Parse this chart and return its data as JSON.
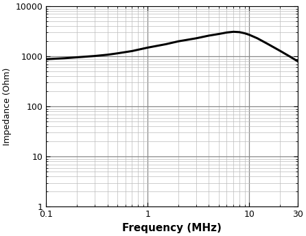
{
  "xlabel": "Frequency (MHz)",
  "ylabel": "Impedance (Ohm)",
  "xmin": 0.1,
  "xmax": 30,
  "ymin": 1,
  "ymax": 10000,
  "curve_color": "#000000",
  "curve_linewidth": 2.2,
  "grid_major_color": "#888888",
  "grid_minor_color": "#bbbbbb",
  "grid_major_lw": 0.9,
  "grid_minor_lw": 0.5,
  "background_color": "#ffffff",
  "freq_points": [
    0.1,
    0.15,
    0.2,
    0.3,
    0.4,
    0.5,
    0.7,
    1.0,
    1.5,
    2.0,
    3.0,
    4.0,
    5.0,
    6.0,
    7.0,
    8.0,
    9.0,
    10.0,
    12.0,
    15.0,
    20.0,
    25.0,
    30.0
  ],
  "impedance_points": [
    880,
    920,
    960,
    1020,
    1080,
    1150,
    1280,
    1500,
    1750,
    2000,
    2300,
    2600,
    2800,
    3000,
    3100,
    3050,
    2900,
    2700,
    2300,
    1800,
    1300,
    1000,
    800
  ],
  "xtick_major": [
    0.1,
    1,
    10,
    30
  ],
  "xtick_major_labels": [
    "0.1",
    "1",
    "10",
    "30"
  ],
  "ytick_major": [
    1,
    10,
    100,
    1000,
    10000
  ],
  "ytick_major_labels": [
    "1",
    "10",
    "100",
    "1000",
    "10000"
  ],
  "tick_labelsize": 9,
  "xlabel_fontsize": 11,
  "ylabel_fontsize": 9,
  "figwidth": 4.46,
  "figheight": 3.44,
  "dpi": 100
}
